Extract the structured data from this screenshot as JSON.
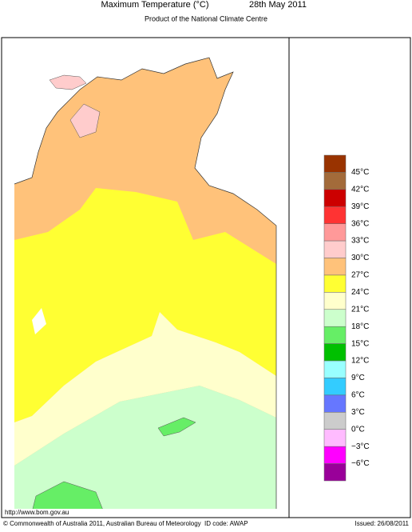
{
  "header": {
    "title": "Maximum Temperature (°C)",
    "date": "28th May 2011",
    "subtitle": "Product of the National Climate Centre"
  },
  "legend": {
    "colors": [
      "#993300",
      "#a36b3a",
      "#cc0000",
      "#ff3333",
      "#ff9999",
      "#ffcccc",
      "#ffc27a",
      "#ffff33",
      "#ffffcc",
      "#ccffcc",
      "#66ee66",
      "#00c000",
      "#99ffff",
      "#33ccff",
      "#6677ff",
      "#cccccc",
      "#ffbbff",
      "#ff00ff",
      "#990099"
    ],
    "labels": [
      "45°C",
      "42°C",
      "39°C",
      "36°C",
      "33°C",
      "30°C",
      "27°C",
      "24°C",
      "21°C",
      "18°C",
      "15°C",
      "12°C",
      "9°C",
      "6°C",
      "3°C",
      "0°C",
      "−3°C",
      "−6°C"
    ]
  },
  "footer": {
    "url": "http://www.bom.gov.au",
    "copyright": "© Commonwealth of Australia 2011, Australian Bureau of Meteorology",
    "id_code": "ID code: AWAP",
    "issued": "Issued: 26/08/2011"
  }
}
